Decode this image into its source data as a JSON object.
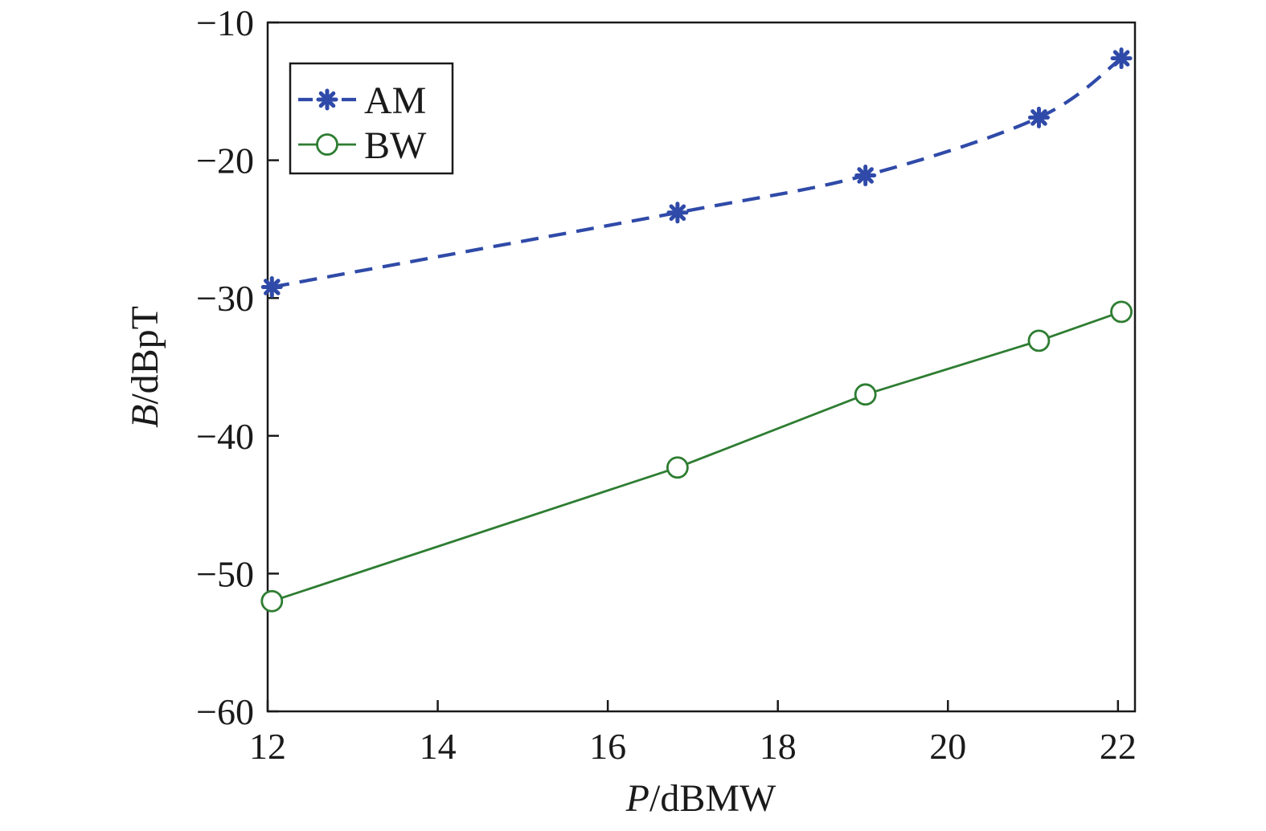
{
  "chart_data": {
    "type": "line",
    "xlabel": {
      "var": "P",
      "unit": "/dBMW"
    },
    "ylabel": {
      "var": "B",
      "unit": "/dBpT"
    },
    "xlim": [
      12,
      22.2
    ],
    "ylim": [
      -60,
      -10
    ],
    "xticks": [
      12,
      14,
      16,
      18,
      20,
      22
    ],
    "yticks": [
      -10,
      -20,
      -30,
      -40,
      -50,
      -60
    ],
    "xtick_labels": [
      "12",
      "14",
      "16",
      "18",
      "20",
      "22"
    ],
    "ytick_labels": [
      "−10",
      "−20",
      "−30",
      "−40",
      "−50",
      "−60"
    ],
    "grid": false,
    "legend_position": "top-left",
    "series": [
      {
        "name": "AM",
        "color": "#2f4aa8",
        "line_style": "dashed",
        "marker": "asterisk",
        "x": [
          12.05,
          16.82,
          19.03,
          21.07,
          22.04
        ],
        "y": [
          -29.2,
          -23.8,
          -21.1,
          -16.9,
          -12.6
        ]
      },
      {
        "name": "BW",
        "color": "#2e7d32",
        "line_style": "solid",
        "marker": "circle-open",
        "x": [
          12.05,
          16.82,
          19.03,
          21.07,
          22.04
        ],
        "y": [
          -52.0,
          -42.3,
          -37.0,
          -33.1,
          -31.0
        ]
      }
    ]
  }
}
